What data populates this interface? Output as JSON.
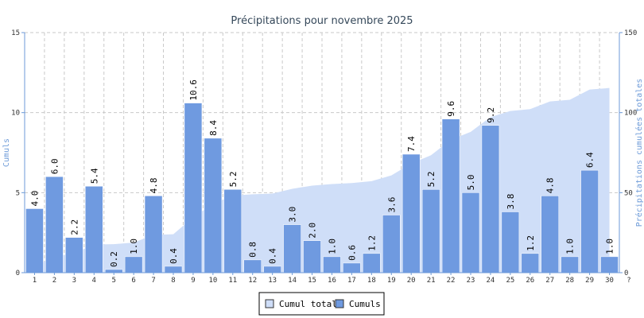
{
  "chart_data": {
    "type": "bar",
    "title": "Précipitations pour novembre 2025",
    "ylabel_left": "Cumuls",
    "ylabel_right": "Précipitations cumulées totales",
    "ylim_left": [
      0,
      15
    ],
    "ylim_right": [
      0,
      150
    ],
    "yticks_left": [
      "0",
      "5",
      "10",
      "15"
    ],
    "yticks_right": [
      "0",
      "50",
      "100",
      "150"
    ],
    "categories": [
      "1",
      "2",
      "3",
      "4",
      "5",
      "6",
      "7",
      "8",
      "9",
      "10",
      "11",
      "12",
      "13",
      "14",
      "15",
      "16",
      "17",
      "18",
      "19",
      "20",
      "21",
      "22",
      "23",
      "24",
      "25",
      "26",
      "27",
      "28",
      "29",
      "30"
    ],
    "extra_tick_label": "?",
    "grid": true,
    "legend_position": "bottom",
    "series": [
      {
        "name": "Cumuls",
        "type": "bar",
        "axis": "left",
        "color": "#6f9ae0",
        "values": [
          4.0,
          6.0,
          2.2,
          5.4,
          0.2,
          1.0,
          4.8,
          0.4,
          10.6,
          8.4,
          5.2,
          0.8,
          0.4,
          3.0,
          2.0,
          1.0,
          0.6,
          1.2,
          3.6,
          7.4,
          5.2,
          9.6,
          5.0,
          9.2,
          3.8,
          1.2,
          4.8,
          1.0,
          6.4,
          1.0
        ],
        "labels": [
          "4.0",
          "6.0",
          "2.2",
          "5.4",
          "0.2",
          "1.0",
          "4.8",
          "0.4",
          "10.6",
          "8.4",
          "5.2",
          "0.8",
          "0.4",
          "3.0",
          "2.0",
          "1.0",
          "0.6",
          "1.2",
          "3.6",
          "7.4",
          "5.2",
          "9.6",
          "5.0",
          "9.2",
          "3.8",
          "1.2",
          "4.8",
          "1.0",
          "6.4",
          "1.0"
        ]
      },
      {
        "name": "Cumul total",
        "type": "area",
        "axis": "right",
        "color": "#cfdef8",
        "values": [
          4.0,
          10.0,
          12.2,
          17.6,
          17.8,
          18.8,
          23.6,
          24.0,
          34.6,
          43.0,
          48.2,
          49.0,
          49.4,
          52.4,
          54.4,
          55.4,
          56.0,
          57.2,
          60.8,
          68.2,
          73.4,
          83.0,
          88.0,
          97.2,
          101.0,
          102.2,
          107.0,
          108.0,
          114.4,
          115.4
        ]
      }
    ]
  }
}
